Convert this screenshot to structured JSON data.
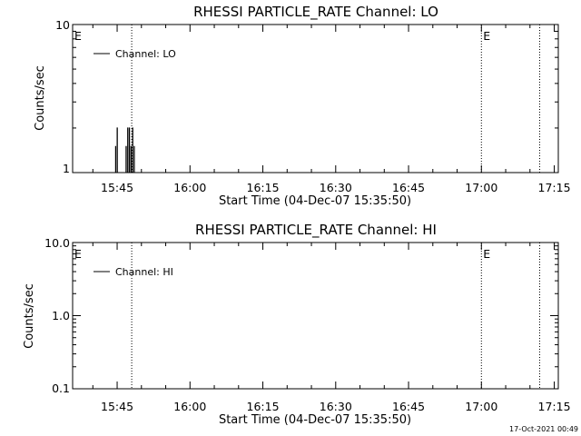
{
  "chart_data": [
    {
      "type": "line",
      "scale_y": "log",
      "title": "RHESSI PARTICLE_RATE Channel: LO",
      "xlabel": "Start Time (04-Dec-07 15:35:50)",
      "ylabel": "Counts/sec",
      "x_ticks": [
        "15:45",
        "16:00",
        "16:15",
        "16:30",
        "16:45",
        "17:00",
        "17:15"
      ],
      "y_ticks": [
        "1",
        "10"
      ],
      "ylim": [
        1,
        10
      ],
      "xlim_seconds_from_start": [
        0,
        6000
      ],
      "legend": {
        "label": "Channel: LO",
        "position": "top-left"
      },
      "event_markers": [
        {
          "label": "E",
          "time": "15:35:50"
        },
        {
          "label": "",
          "time": "15:48"
        },
        {
          "label": "E",
          "time": "17:00"
        },
        {
          "label": "",
          "time": "17:12"
        }
      ],
      "series": [
        {
          "name": "Channel: LO",
          "points": [
            [
              "15:44:40",
              1
            ],
            [
              "15:44:40",
              1.5
            ],
            [
              "15:44:43",
              1.5
            ],
            [
              "15:44:43",
              1
            ],
            [
              "15:45:00",
              1
            ],
            [
              "15:45:00",
              2
            ],
            [
              "15:45:03",
              2
            ],
            [
              "15:45:03",
              1
            ],
            [
              "15:46:50",
              1
            ],
            [
              "15:46:50",
              1.5
            ],
            [
              "15:46:53",
              1.5
            ],
            [
              "15:46:53",
              1
            ],
            [
              "15:47:10",
              1
            ],
            [
              "15:47:10",
              2
            ],
            [
              "15:47:13",
              2
            ],
            [
              "15:47:13",
              1
            ],
            [
              "15:47:30",
              1
            ],
            [
              "15:47:30",
              2
            ],
            [
              "15:47:33",
              2
            ],
            [
              "15:47:33",
              1
            ],
            [
              "15:47:50",
              1
            ],
            [
              "15:47:50",
              1.5
            ],
            [
              "15:47:53",
              1.5
            ],
            [
              "15:47:53",
              1
            ],
            [
              "15:48:10",
              1
            ],
            [
              "15:48:10",
              2
            ],
            [
              "15:48:13",
              2
            ],
            [
              "15:48:13",
              1
            ],
            [
              "15:48:30",
              1
            ],
            [
              "15:48:30",
              1.5
            ],
            [
              "15:48:33",
              1.5
            ],
            [
              "15:48:33",
              1
            ]
          ]
        }
      ]
    },
    {
      "type": "line",
      "scale_y": "log",
      "title": "RHESSI PARTICLE_RATE Channel: HI",
      "xlabel": "Start Time (04-Dec-07 15:35:50)",
      "ylabel": "Counts/sec",
      "x_ticks": [
        "15:45",
        "16:00",
        "16:15",
        "16:30",
        "16:45",
        "17:00",
        "17:15"
      ],
      "y_ticks": [
        "0.1",
        "1.0",
        "10.0"
      ],
      "ylim": [
        0.1,
        10
      ],
      "xlim_seconds_from_start": [
        0,
        6000
      ],
      "legend": {
        "label": "Channel: HI",
        "position": "top-left"
      },
      "event_markers": [
        {
          "label": "E",
          "time": "15:35:50"
        },
        {
          "label": "",
          "time": "15:48"
        },
        {
          "label": "E",
          "time": "17:00"
        },
        {
          "label": "",
          "time": "17:12"
        }
      ],
      "series": [
        {
          "name": "Channel: HI",
          "points": []
        }
      ]
    }
  ],
  "footer": {
    "timestamp": "17-Oct-2021 00:49"
  }
}
